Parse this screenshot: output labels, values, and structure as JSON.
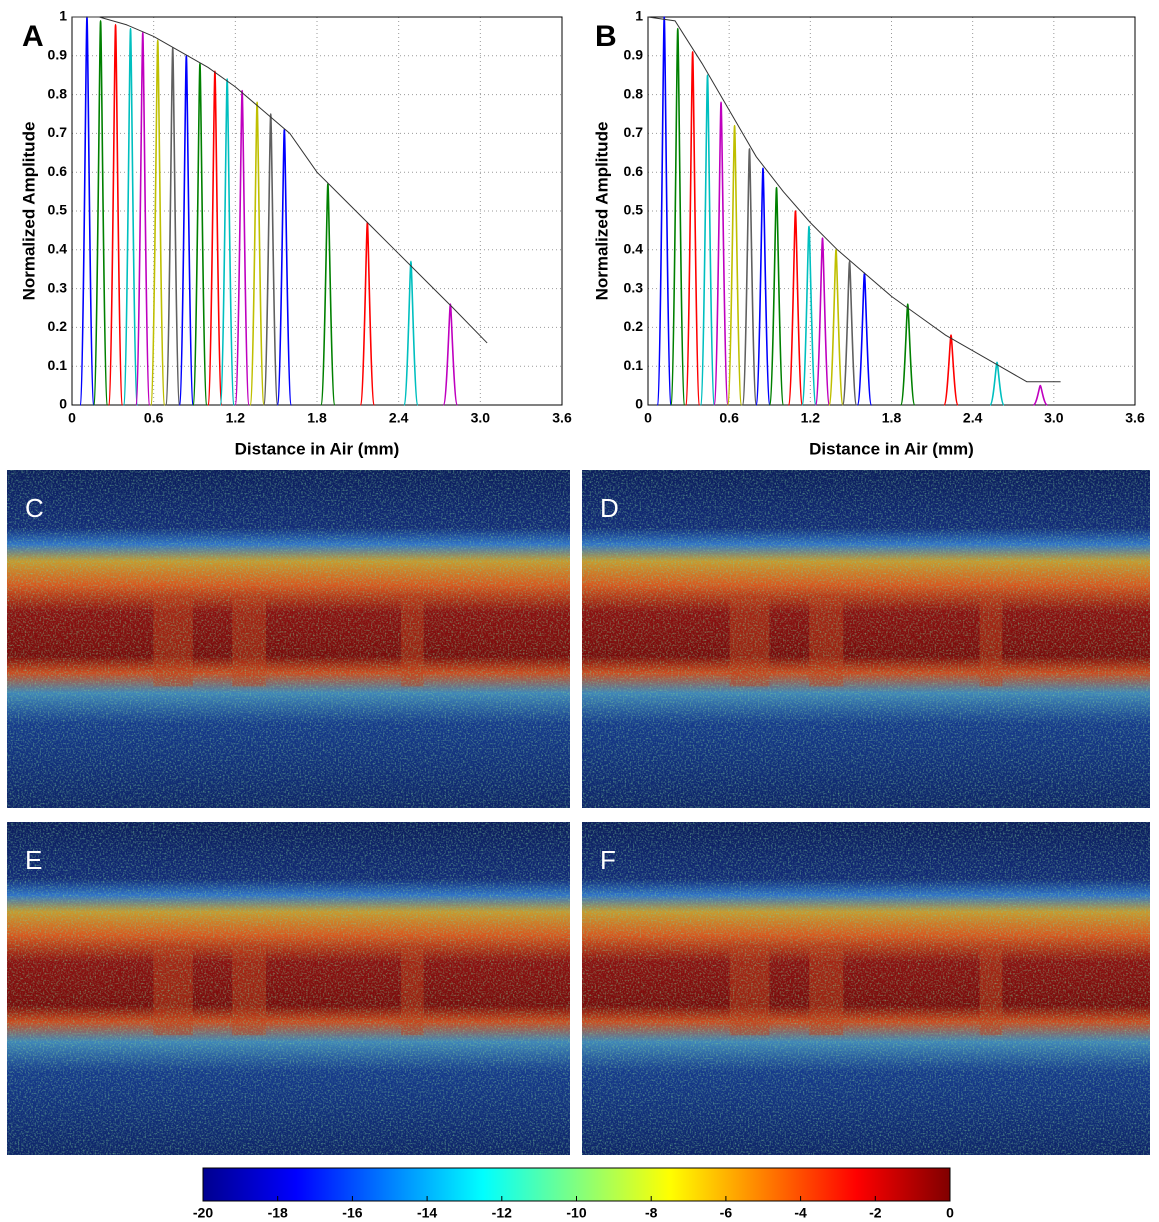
{
  "chart_data": [
    {
      "type": "line",
      "panel_label": "A",
      "xlabel": "Distance in Air (mm)",
      "ylabel": "Normalized Amplitude",
      "xlim": [
        0,
        3.6
      ],
      "ylim": [
        0,
        1
      ],
      "xticks": [
        0,
        0.6,
        1.2,
        1.8,
        2.4,
        {
          "value": 3,
          "label": "3.0"
        },
        3.6
      ],
      "yticks": [
        0,
        0.1,
        0.2,
        0.3,
        0.4,
        0.5,
        0.6,
        0.7,
        0.8,
        0.9,
        1
      ],
      "grid": true,
      "colors": [
        "#0000ff",
        "#008000",
        "#ff0000",
        "#00bfbf",
        "#bf00bf",
        "#bfbf00",
        "#606060"
      ],
      "peaks": {
        "x": [
          0.11,
          0.21,
          0.32,
          0.43,
          0.52,
          0.63,
          0.74,
          0.84,
          0.94,
          1.05,
          1.14,
          1.25,
          1.36,
          1.46,
          1.56,
          1.88,
          2.17,
          2.49,
          2.78
        ],
        "values": [
          1,
          0.99,
          0.98,
          0.97,
          0.96,
          0.94,
          0.92,
          0.9,
          0.88,
          0.86,
          0.84,
          0.81,
          0.78,
          0.75,
          0.71,
          0.57,
          0.47,
          0.37,
          0.26
        ]
      },
      "envelope": {
        "x": [
          0,
          0.2,
          0.4,
          0.6,
          0.8,
          1.0,
          1.2,
          1.4,
          1.6,
          1.8,
          2.0,
          2.2,
          2.4,
          2.6,
          2.8,
          3.05
        ],
        "values": [
          1,
          1,
          0.98,
          0.95,
          0.91,
          0.87,
          0.82,
          0.76,
          0.7,
          0.6,
          0.53,
          0.46,
          0.39,
          0.32,
          0.25,
          0.16
        ]
      }
    },
    {
      "type": "line",
      "panel_label": "B",
      "xlabel": "Distance in Air (mm)",
      "ylabel": "Normalized Amplitude",
      "xlim": [
        0,
        3.6
      ],
      "ylim": [
        0,
        1
      ],
      "xticks": [
        0,
        0.6,
        1.2,
        1.8,
        2.4,
        {
          "value": 3,
          "label": "3.0"
        },
        3.6
      ],
      "yticks": [
        0,
        0.1,
        0.2,
        0.3,
        0.4,
        0.5,
        0.6,
        0.7,
        0.8,
        0.9,
        1
      ],
      "grid": true,
      "colors": [
        "#0000ff",
        "#008000",
        "#ff0000",
        "#00bfbf",
        "#bf00bf",
        "#bfbf00",
        "#606060"
      ],
      "peaks": {
        "x": [
          0.12,
          0.22,
          0.33,
          0.44,
          0.54,
          0.64,
          0.75,
          0.85,
          0.95,
          1.09,
          1.19,
          1.29,
          1.39,
          1.49,
          1.6,
          1.92,
          2.24,
          2.58,
          2.9
        ],
        "values": [
          1,
          0.97,
          0.91,
          0.85,
          0.78,
          0.72,
          0.66,
          0.61,
          0.56,
          0.5,
          0.46,
          0.43,
          0.4,
          0.37,
          0.34,
          0.26,
          0.18,
          0.11,
          0.05
        ]
      },
      "envelope": {
        "x": [
          0,
          0.2,
          0.4,
          0.6,
          0.8,
          1.0,
          1.2,
          1.4,
          1.6,
          1.8,
          2.0,
          2.2,
          2.4,
          2.6,
          2.8,
          3.05
        ],
        "values": [
          1,
          0.99,
          0.88,
          0.76,
          0.64,
          0.55,
          0.47,
          0.4,
          0.34,
          0.28,
          0.23,
          0.18,
          0.14,
          0.1,
          0.06,
          0.06
        ]
      }
    },
    {
      "type": "colorbar",
      "clim": [
        -20,
        0
      ],
      "xticks": [
        -20,
        -18,
        -16,
        -14,
        -12,
        -10,
        -8,
        -6,
        -4,
        -2,
        0
      ],
      "colormap": [
        "#00008f",
        "#0000ff",
        "#0080ff",
        "#00ffff",
        "#80ff80",
        "#ffff00",
        "#ff8000",
        "#ff0000",
        "#800000"
      ]
    }
  ],
  "images": [
    {
      "label": "C"
    },
    {
      "label": "D"
    },
    {
      "label": "E"
    },
    {
      "label": "F"
    }
  ]
}
